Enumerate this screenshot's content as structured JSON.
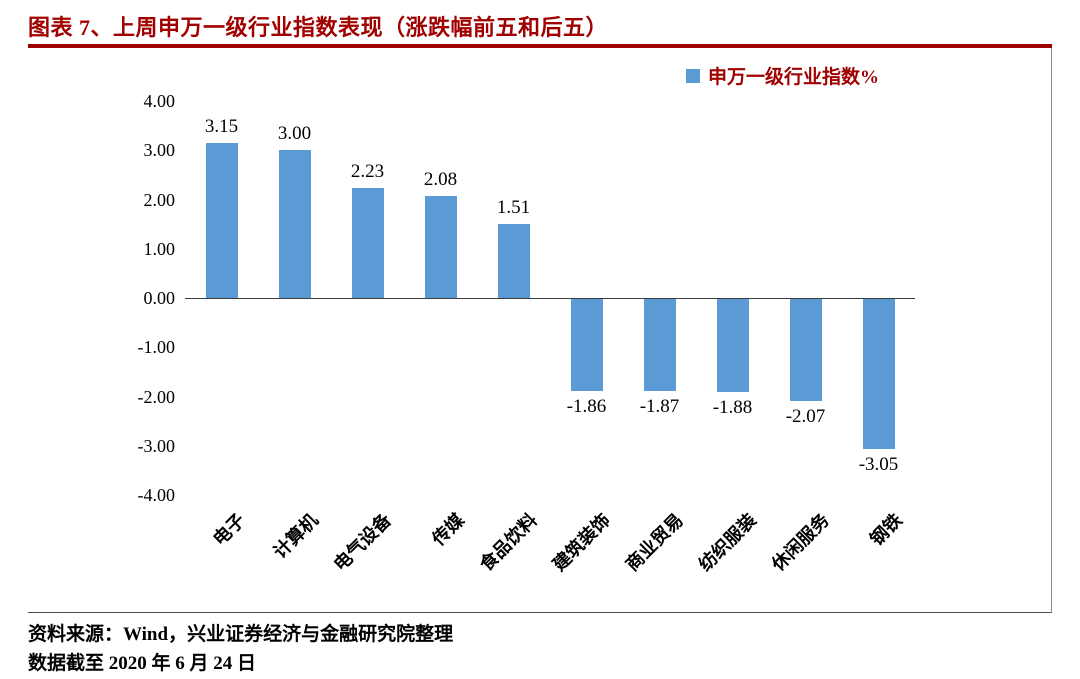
{
  "header": {
    "title": "图表 7、上周申万一级行业指数表现（涨跌幅前五和后五）"
  },
  "legend": {
    "label": "申万一级行业指数%"
  },
  "chart_data": {
    "type": "bar",
    "title": "上周申万一级行业指数表现（涨跌幅前五和后五）",
    "categories": [
      "电子",
      "计算机",
      "电气设备",
      "传媒",
      "食品饮料",
      "建筑装饰",
      "商业贸易",
      "纺织服装",
      "休闲服务",
      "钢铁"
    ],
    "series": [
      {
        "name": "申万一级行业指数%",
        "values": [
          3.15,
          3.0,
          2.23,
          2.08,
          1.51,
          -1.86,
          -1.87,
          -1.88,
          -2.07,
          -3.05
        ]
      }
    ],
    "value_labels": [
      "3.15",
      "3.00",
      "2.23",
      "2.08",
      "1.51",
      "-1.86",
      "-1.87",
      "-1.88",
      "-2.07",
      "-3.05"
    ],
    "xlabel": "",
    "ylabel": "",
    "ylim": [
      -4,
      4
    ],
    "y_ticks": [
      "4.00",
      "3.00",
      "2.00",
      "1.00",
      "0.00",
      "-1.00",
      "-2.00",
      "-3.00",
      "-4.00"
    ],
    "grid": false,
    "legend_position": "top-right",
    "bar_color": "#5B9BD5"
  },
  "colors": {
    "accent_red": "#A00000",
    "bar_blue": "#5B9BD5"
  },
  "footer": {
    "source": "资料来源：Wind，兴业证券经济与金融研究院整理",
    "note": "数据截至 2020 年 6 月 24 日"
  }
}
